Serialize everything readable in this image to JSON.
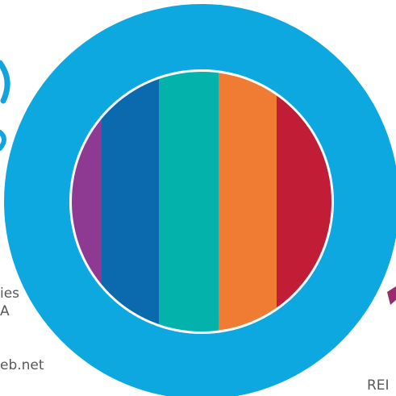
{
  "colors": {
    "background": "#ffffff",
    "ring": "#0ea8e0",
    "inner_border": "#ffffff",
    "stripes": [
      "#8e3a93",
      "#0b6aae",
      "#03b2ab",
      "#f07c34",
      "#c21d36"
    ],
    "peek_glyph": "#12a4dc",
    "peek_mark": "#9a2a6e"
  },
  "edge_text": {
    "left_top": "ies",
    "left_bottom": "A",
    "bottom_left": "eb.net",
    "bottom_right": "REI"
  }
}
